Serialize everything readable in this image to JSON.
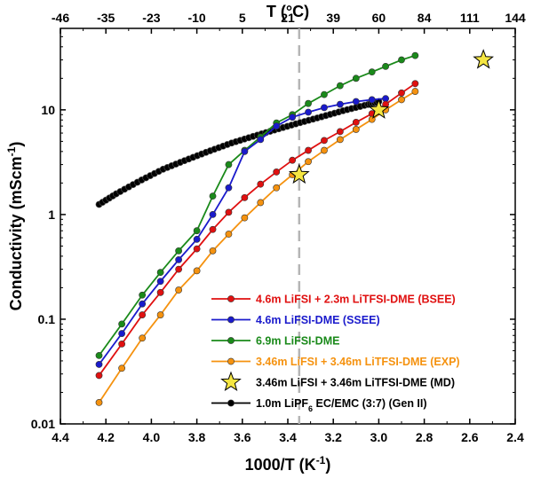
{
  "chart_data": {
    "type": "line",
    "title": "",
    "xlabel": "1000/T (K",
    "xlabel_sup": "-1",
    "xlabel_end": ")",
    "ylabel": "Conductivity (mScm",
    "ylabel_sup": "-1",
    "ylabel_end": ")",
    "top_xlabel": "T (°C)",
    "xlim": [
      4.4,
      2.4
    ],
    "ylim": [
      0.01,
      60
    ],
    "yscale": "log",
    "x_ticks": [
      4.4,
      4.2,
      4.0,
      3.8,
      3.6,
      3.4,
      3.2,
      3.0,
      2.8,
      2.6,
      2.4
    ],
    "x_tick_labels": [
      "4.4",
      "4.2",
      "4.0",
      "3.8",
      "3.6",
      "3.4",
      "3.2",
      "3.0",
      "2.8",
      "2.6",
      "2.4"
    ],
    "y_ticks": [
      0.01,
      0.1,
      1,
      10
    ],
    "y_tick_labels": [
      "0.01",
      "0.1",
      "1",
      "10"
    ],
    "top_ticks": [
      {
        "label": "-46",
        "x": 4.4
      },
      {
        "label": "-35",
        "x": 4.2
      },
      {
        "label": "-23",
        "x": 4.0
      },
      {
        "label": "-10",
        "x": 3.8
      },
      {
        "label": "5",
        "x": 3.6
      },
      {
        "label": "21",
        "x": 3.4
      },
      {
        "label": "39",
        "x": 3.2
      },
      {
        "label": "60",
        "x": 3.0
      },
      {
        "label": "84",
        "x": 2.8
      },
      {
        "label": "111",
        "x": 2.6
      },
      {
        "label": "144",
        "x": 2.4
      }
    ],
    "reference_line_x": 3.35,
    "series": [
      {
        "name": "1.0m LiPF6 EC/EMC (3:7) (Gen II)",
        "legend_label": "1.0m LiPF",
        "legend_sub": "6",
        "legend_rest": " EC/EMC (3:7) (Gen II)",
        "color": "#000000",
        "marker": "circle",
        "x": [
          4.23,
          4.15,
          4.05,
          3.95,
          3.85,
          3.75,
          3.65,
          3.55,
          3.45,
          3.35,
          3.25,
          3.15,
          3.05,
          3.0
        ],
        "y": [
          1.25,
          1.6,
          2.1,
          2.7,
          3.3,
          4.0,
          4.8,
          5.6,
          6.5,
          7.5,
          8.6,
          9.9,
          11.2,
          12.0
        ]
      },
      {
        "name": "6.9m LiFSI-DME",
        "legend_label": "6.9m LiFSI-DME",
        "color": "#1a8a1a",
        "marker": "circle",
        "x": [
          4.23,
          4.13,
          4.04,
          3.96,
          3.88,
          3.8,
          3.73,
          3.66,
          3.59,
          3.52,
          3.45,
          3.38,
          3.31,
          3.24,
          3.17,
          3.1,
          3.03,
          2.97,
          2.9,
          2.84
        ],
        "y": [
          0.045,
          0.09,
          0.17,
          0.28,
          0.45,
          0.7,
          1.5,
          3.0,
          4.1,
          5.5,
          7.5,
          9.0,
          11.5,
          14.0,
          17.0,
          20.0,
          23.0,
          26.0,
          30.0,
          33.0
        ]
      },
      {
        "name": "4.6m LiFSI-DME (SSEE)",
        "legend_label": "4.6m LiFSI-DME (SSEE)",
        "color": "#1a1acc",
        "marker": "circle",
        "x": [
          4.23,
          4.13,
          4.04,
          3.96,
          3.88,
          3.8,
          3.73,
          3.66,
          3.59,
          3.52,
          3.45,
          3.38,
          3.31,
          3.24,
          3.17,
          3.1,
          3.03,
          2.97
        ],
        "y": [
          0.037,
          0.073,
          0.14,
          0.23,
          0.37,
          0.58,
          1.0,
          1.8,
          4.0,
          5.2,
          7.0,
          8.5,
          9.5,
          10.5,
          11.3,
          12.0,
          12.5,
          12.8
        ]
      },
      {
        "name": "4.6m LiFSI + 2.3m LiTFSI-DME (BSEE)",
        "legend_label": "4.6m LiFSI + 2.3m LiTFSI-DME (BSEE)",
        "color": "#e01010",
        "marker": "circle",
        "x": [
          4.23,
          4.13,
          4.04,
          3.96,
          3.88,
          3.8,
          3.73,
          3.66,
          3.59,
          3.52,
          3.45,
          3.38,
          3.31,
          3.24,
          3.17,
          3.1,
          3.03,
          2.97,
          2.9,
          2.84
        ],
        "y": [
          0.029,
          0.058,
          0.11,
          0.18,
          0.3,
          0.47,
          0.72,
          1.05,
          1.45,
          1.95,
          2.55,
          3.3,
          4.1,
          5.1,
          6.2,
          7.6,
          9.2,
          11.3,
          14.5,
          17.8
        ]
      },
      {
        "name": "3.46m LiFSI + 3.46m LiTFSI-DME (EXP)",
        "legend_label": "3.46m LiFSI + 3.46m LiTFSI-DME (EXP)",
        "color": "#f5920f",
        "marker": "circle",
        "x": [
          4.23,
          4.13,
          4.04,
          3.96,
          3.88,
          3.8,
          3.73,
          3.66,
          3.59,
          3.52,
          3.45,
          3.38,
          3.31,
          3.24,
          3.17,
          3.1,
          3.03,
          2.97,
          2.9,
          2.84
        ],
        "y": [
          0.016,
          0.034,
          0.066,
          0.11,
          0.19,
          0.29,
          0.45,
          0.65,
          0.93,
          1.3,
          1.8,
          2.4,
          3.2,
          4.1,
          5.2,
          6.5,
          8.1,
          10.0,
          12.5,
          15.0
        ]
      },
      {
        "name": "3.46m LiFSI + 3.46m LiTFSI-DME (MD)",
        "legend_label": "3.46m LiFSI + 3.46m LiTFSI-DME (MD)",
        "color": "#f5e642",
        "marker": "star",
        "x": [
          3.35,
          3.0,
          2.54
        ],
        "y": [
          2.4,
          10.0,
          30.0
        ]
      }
    ],
    "legend_order": [
      3,
      2,
      1,
      4,
      5,
      0
    ],
    "legend_text_colors": [
      "#e01010",
      "#1a1acc",
      "#1a8a1a",
      "#f5920f",
      "#000000",
      "#000000"
    ]
  }
}
